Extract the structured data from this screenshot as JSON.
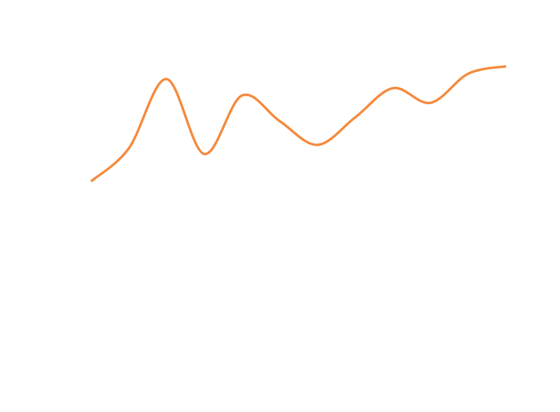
{
  "chart_data": {
    "type": "line",
    "title": "",
    "xlabel": "",
    "ylabel": "",
    "grid": false,
    "legend": "none",
    "x": [
      0,
      1,
      2,
      3,
      4,
      5,
      6,
      7,
      8,
      9,
      10,
      11
    ],
    "series": [
      {
        "values": [
          0.3,
          1.2,
          3.1,
          1.05,
          2.65,
          1.95,
          1.3,
          2.05,
          2.85,
          2.45,
          3.25,
          3.45
        ],
        "color": "#f58a3d"
      }
    ],
    "ylim": [
      -4.0,
      4.0
    ]
  }
}
